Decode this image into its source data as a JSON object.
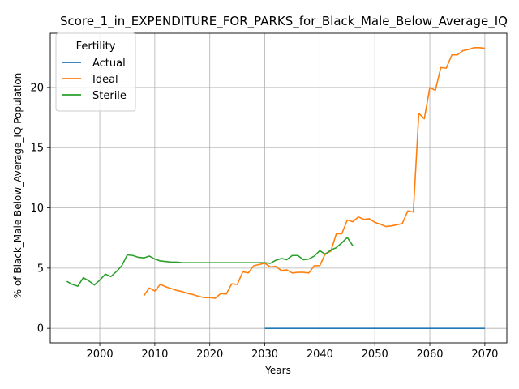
{
  "chart_data": {
    "type": "line",
    "title": "Score_1_in_EXPENDITURE_FOR_PARKS_for_Black_Male_Below_Average_IQ",
    "xlabel": "Years",
    "ylabel": "% of Black_Male Below_Average_IQ Population",
    "xlim": [
      1991,
      2074
    ],
    "ylim": [
      -1.2,
      24.5
    ],
    "x_ticks": [
      2000,
      2010,
      2020,
      2030,
      2040,
      2050,
      2060,
      2070
    ],
    "y_ticks": [
      0,
      5,
      10,
      15,
      20
    ],
    "grid": true,
    "legend": {
      "title": "Fertility",
      "placement": "top-left"
    },
    "series": [
      {
        "name": "Actual",
        "color": "#1f77b4",
        "x": [
          2030,
          2035,
          2040,
          2045,
          2050,
          2055,
          2060,
          2065,
          2070
        ],
        "y": [
          0,
          0,
          0,
          0,
          0,
          0,
          0,
          0,
          0
        ]
      },
      {
        "name": "Ideal",
        "color": "#ff7f0e",
        "x": [
          2008,
          2009,
          2010,
          2011,
          2012,
          2013,
          2014,
          2015,
          2016,
          2017,
          2018,
          2019,
          2020,
          2021,
          2022,
          2023,
          2024,
          2025,
          2026,
          2027,
          2028,
          2029,
          2030,
          2031,
          2032,
          2033,
          2034,
          2035,
          2036,
          2037,
          2038,
          2039,
          2040,
          2041,
          2042,
          2043,
          2044,
          2045,
          2046,
          2047,
          2048,
          2049,
          2050,
          2051,
          2052,
          2053,
          2054,
          2055,
          2056,
          2057,
          2058,
          2059,
          2060,
          2061,
          2062,
          2063,
          2064,
          2065,
          2066,
          2067,
          2068,
          2069,
          2070
        ],
        "y": [
          2.7,
          3.35,
          3.1,
          3.65,
          3.45,
          3.3,
          3.15,
          3.05,
          2.9,
          2.8,
          2.65,
          2.55,
          2.55,
          2.5,
          2.9,
          2.85,
          3.7,
          3.65,
          4.7,
          4.6,
          5.2,
          5.3,
          5.4,
          5.1,
          5.15,
          4.8,
          4.85,
          4.6,
          4.65,
          4.65,
          4.6,
          5.2,
          5.2,
          6.2,
          6.4,
          7.85,
          7.85,
          9.0,
          8.85,
          9.25,
          9.05,
          9.1,
          8.8,
          8.65,
          8.45,
          8.5,
          8.6,
          8.7,
          9.75,
          9.65,
          17.85,
          17.4,
          20.0,
          19.75,
          21.65,
          21.6,
          22.7,
          22.7,
          23.05,
          23.15,
          23.3,
          23.3,
          23.25
        ]
      },
      {
        "name": "Sterile",
        "color": "#2ca02c",
        "x": [
          1994,
          1995,
          1996,
          1997,
          1998,
          1999,
          2000,
          2001,
          2002,
          2003,
          2004,
          2005,
          2006,
          2007,
          2008,
          2009,
          2010,
          2011,
          2012,
          2013,
          2014,
          2015,
          2016,
          2017,
          2018,
          2019,
          2020,
          2021,
          2022,
          2023,
          2024,
          2025,
          2026,
          2027,
          2028,
          2029,
          2030,
          2031,
          2032,
          2033,
          2034,
          2035,
          2036,
          2037,
          2038,
          2039,
          2040,
          2041,
          2042,
          2043,
          2044,
          2045,
          2046
        ],
        "y": [
          3.9,
          3.65,
          3.5,
          4.2,
          3.95,
          3.6,
          4.0,
          4.5,
          4.3,
          4.7,
          5.2,
          6.1,
          6.05,
          5.9,
          5.85,
          6.0,
          5.75,
          5.6,
          5.55,
          5.5,
          5.5,
          5.45,
          5.45,
          5.45,
          5.45,
          5.45,
          5.45,
          5.45,
          5.45,
          5.45,
          5.45,
          5.45,
          5.45,
          5.45,
          5.45,
          5.45,
          5.45,
          5.4,
          5.65,
          5.8,
          5.7,
          6.05,
          6.05,
          5.7,
          5.75,
          6.0,
          6.45,
          6.15,
          6.5,
          6.7,
          7.1,
          7.55,
          6.85
        ]
      }
    ]
  }
}
